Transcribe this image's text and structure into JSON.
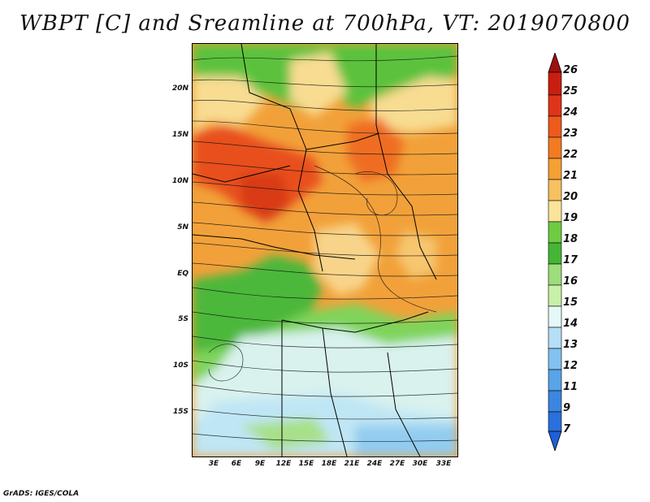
{
  "title": "WBPT [C] and Sreamline at 700hPa, VT: 2019070800",
  "credit": "GrADS: IGES/COLA",
  "map": {
    "variable": "WBPT",
    "units": "C",
    "level": "700hPa",
    "valid_time": "2019070800",
    "lat_labels": [
      "20N",
      "15N",
      "10N",
      "5N",
      "EQ",
      "5S",
      "10S",
      "15S"
    ],
    "lat_values": [
      20,
      15,
      10,
      5,
      0,
      -5,
      -10,
      -15
    ],
    "lon_labels": [
      "3E",
      "6E",
      "9E",
      "12E",
      "15E",
      "18E",
      "21E",
      "24E",
      "27E",
      "30E",
      "33E"
    ],
    "lon_values": [
      3,
      6,
      9,
      12,
      15,
      18,
      21,
      24,
      27,
      30,
      33
    ]
  },
  "colorbar": {
    "labels": [
      "26",
      "25",
      "24",
      "23",
      "22",
      "21",
      "20",
      "19",
      "18",
      "17",
      "16",
      "15",
      "14",
      "13",
      "12",
      "11",
      "9",
      "7"
    ],
    "colors": [
      "#a01010",
      "#c81e10",
      "#e0341a",
      "#ee5a1c",
      "#f27a22",
      "#f5a034",
      "#f7c060",
      "#fae39a",
      "#6fcb42",
      "#44b534",
      "#9ddd7a",
      "#c7f0a8",
      "#e6f7f7",
      "#b6def5",
      "#82c2f0",
      "#58a4e8",
      "#3a86e0",
      "#1f5fd8"
    ]
  }
}
